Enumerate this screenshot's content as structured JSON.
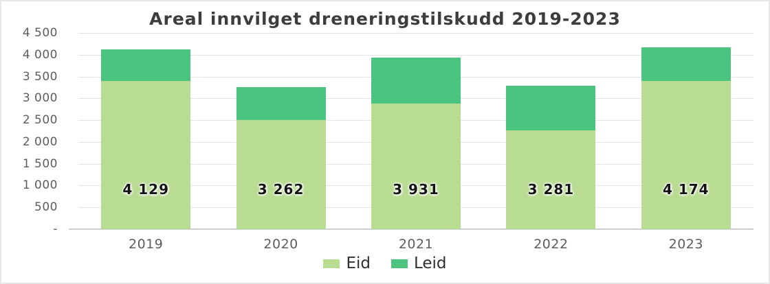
{
  "chart_data": {
    "type": "bar",
    "stacked": true,
    "title": "Areal innvilget dreneringstilskudd 2019-2023",
    "categories": [
      "2019",
      "2020",
      "2021",
      "2022",
      "2023"
    ],
    "series": [
      {
        "name": "Eid",
        "color": "#b9dc93",
        "values": [
          3400,
          2500,
          2880,
          2270,
          3400
        ]
      },
      {
        "name": "Leid",
        "color": "#4ac47e",
        "values": [
          729,
          762,
          1051,
          1011,
          774
        ]
      }
    ],
    "totals": [
      4129,
      3262,
      3931,
      3281,
      4174
    ],
    "total_labels": [
      "4 129",
      "3 262",
      "3 931",
      "3 281",
      "4 174"
    ],
    "xlabel": "",
    "ylabel": "",
    "ylim": [
      0,
      4500
    ],
    "y_tick_step": 500,
    "y_tick_labels": [
      "4 500",
      "4 000",
      "3 500",
      "3 000",
      "2 500",
      "2 000",
      "1 500",
      "1 000",
      "500",
      "-"
    ],
    "grid": true,
    "legend_position": "bottom"
  }
}
